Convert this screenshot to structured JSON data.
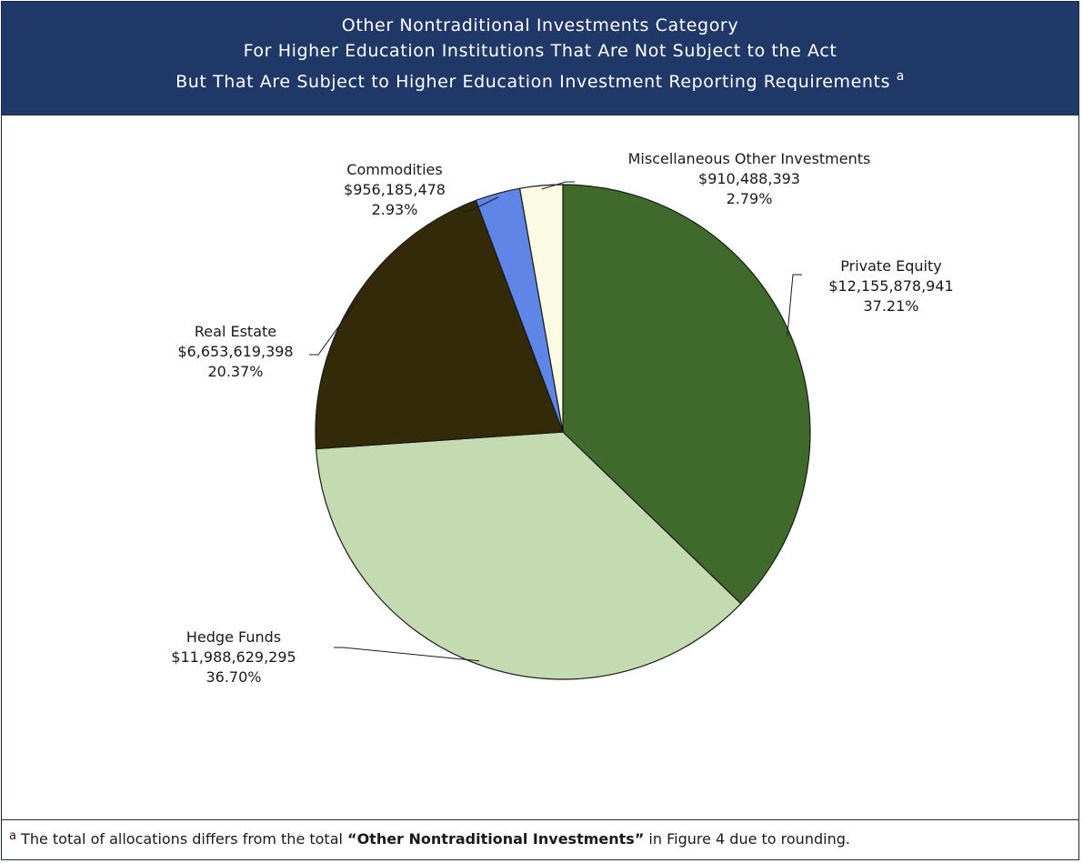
{
  "header": {
    "line1": "Other Nontraditional Investments Category",
    "line2": "For Higher Education Institutions That Are Not Subject to the Act",
    "line3": "But That Are Subject to Higher Education Investment Reporting Requirements",
    "line3_marker": "a"
  },
  "chart_data": {
    "type": "pie",
    "title": "Other Nontraditional Investments Category For Higher Education Institutions That Are Not Subject to the Act But That Are Subject to Higher Education Investment Reporting Requirements",
    "slices": [
      {
        "name": "Private Equity",
        "value_label": "$12,155,878,941",
        "value": 12155878941,
        "percent": 37.21,
        "percent_label": "37.21%",
        "color": "#3f6a2b"
      },
      {
        "name": "Hedge Funds",
        "value_label": "$11,988,629,295",
        "value": 11988629295,
        "percent": 36.7,
        "percent_label": "36.70%",
        "color": "#c4dab0"
      },
      {
        "name": "Real Estate",
        "value_label": "$6,653,619,398",
        "value": 6653619398,
        "percent": 20.37,
        "percent_label": "20.37%",
        "color": "#332a09"
      },
      {
        "name": "Commodities",
        "value_label": "$956,185,478",
        "value": 956185478,
        "percent": 2.93,
        "percent_label": "2.93%",
        "color": "#5f86e6"
      },
      {
        "name": "Miscellaneous Other Investments",
        "value_label": "$910,488,393",
        "value": 910488393,
        "percent": 2.79,
        "percent_label": "2.79%",
        "color": "#fbfbe4"
      }
    ],
    "start": "12 o'clock",
    "direction": "clockwise",
    "legend": "none (labels beside slices)"
  },
  "footnote": {
    "marker": "a",
    "text_before": " The total of allocations differs from the total ",
    "bold": "“Other Nontraditional Investments”",
    "text_after": " in Figure 4 due to rounding."
  }
}
